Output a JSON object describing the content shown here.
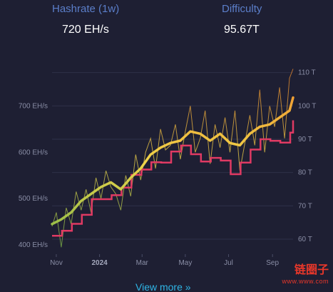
{
  "stats": {
    "hashrate_label": "Hashrate (1w)",
    "hashrate_value": "720 EH/s",
    "difficulty_label": "Difficulty",
    "difficulty_value": "95.67T"
  },
  "link": {
    "view_more": "View more »"
  },
  "watermark": {
    "text": "链圈子",
    "url": "www.www.com"
  },
  "colors": {
    "background": "#1e1f33",
    "label_blue": "#5b7ec9",
    "link_blue": "#2fb5e6",
    "difficulty_line": "#e03a63",
    "hashrate_low": "#7ab648",
    "hashrate_mid": "#f0d54a",
    "hashrate_high": "#f08a2a"
  },
  "chart_data": {
    "type": "line",
    "x_tick_labels": [
      "Nov",
      "2024",
      "Mar",
      "May",
      "Jul",
      "Sep"
    ],
    "left_axis": {
      "ticks": [
        "400 EH/s",
        "500 EH/s",
        "600 EH/s",
        "700 EH/s"
      ],
      "ylim": [
        380,
        790
      ]
    },
    "right_axis": {
      "ticks": [
        "60 T",
        "70 T",
        "80 T",
        "90 T",
        "100 T",
        "110 T"
      ],
      "ylim": [
        55.5,
        112.5
      ]
    },
    "grid": "horizontal",
    "series": [
      {
        "kind": "hashrate_daily",
        "axis": "left",
        "x": [
          "2023-10-26",
          "2023-11-01",
          "2023-11-08",
          "2023-11-15",
          "2023-11-22",
          "2023-11-29",
          "2023-12-06",
          "2023-12-13",
          "2023-12-20",
          "2023-12-27",
          "2024-01-03",
          "2024-01-10",
          "2024-01-17",
          "2024-01-24",
          "2024-01-31",
          "2024-02-07",
          "2024-02-14",
          "2024-02-21",
          "2024-02-28",
          "2024-03-06",
          "2024-03-13",
          "2024-03-20",
          "2024-03-27",
          "2024-04-03",
          "2024-04-10",
          "2024-04-17",
          "2024-04-24",
          "2024-05-01",
          "2024-05-08",
          "2024-05-15",
          "2024-05-22",
          "2024-05-29",
          "2024-06-05",
          "2024-06-12",
          "2024-06-19",
          "2024-06-26",
          "2024-07-03",
          "2024-07-10",
          "2024-07-17",
          "2024-07-24",
          "2024-07-31",
          "2024-08-07",
          "2024-08-14",
          "2024-08-21",
          "2024-08-28",
          "2024-09-04",
          "2024-09-11",
          "2024-09-18",
          "2024-09-25",
          "2024-09-30"
        ],
        "y": [
          440,
          470,
          395,
          480,
          445,
          515,
          475,
          520,
          470,
          545,
          500,
          560,
          525,
          510,
          475,
          550,
          505,
          595,
          540,
          600,
          630,
          565,
          650,
          605,
          615,
          660,
          585,
          645,
          700,
          600,
          630,
          690,
          575,
          660,
          610,
          675,
          600,
          690,
          560,
          620,
          680,
          615,
          735,
          600,
          700,
          655,
          740,
          630,
          760,
          780
        ]
      },
      {
        "kind": "hashrate_7d_avg",
        "axis": "left",
        "x": [
          "2023-10-26",
          "2023-11-08",
          "2023-11-22",
          "2023-12-06",
          "2023-12-20",
          "2024-01-03",
          "2024-01-17",
          "2024-01-31",
          "2024-02-14",
          "2024-02-28",
          "2024-03-13",
          "2024-03-27",
          "2024-04-10",
          "2024-04-24",
          "2024-05-08",
          "2024-05-22",
          "2024-06-05",
          "2024-06-19",
          "2024-07-03",
          "2024-07-17",
          "2024-07-31",
          "2024-08-14",
          "2024-08-28",
          "2024-09-11",
          "2024-09-25",
          "2024-09-30"
        ],
        "y": [
          445,
          455,
          470,
          495,
          510,
          525,
          535,
          520,
          545,
          565,
          595,
          610,
          620,
          625,
          645,
          640,
          625,
          640,
          620,
          615,
          640,
          655,
          660,
          675,
          690,
          718
        ]
      },
      {
        "kind": "difficulty",
        "axis": "right",
        "x": [
          "2023-10-26",
          "2023-11-09",
          "2023-11-23",
          "2023-12-07",
          "2023-12-21",
          "2024-01-04",
          "2024-01-18",
          "2024-02-01",
          "2024-02-15",
          "2024-02-29",
          "2024-03-14",
          "2024-03-28",
          "2024-04-11",
          "2024-04-25",
          "2024-05-09",
          "2024-05-23",
          "2024-06-06",
          "2024-06-20",
          "2024-07-04",
          "2024-07-18",
          "2024-08-01",
          "2024-08-15",
          "2024-08-29",
          "2024-09-12",
          "2024-09-26",
          "2024-09-30"
        ],
        "y": [
          61.0,
          62.5,
          64.6,
          67.3,
          72.0,
          72.0,
          73.2,
          75.5,
          79.3,
          80.9,
          83.1,
          83.0,
          86.3,
          88.1,
          85.5,
          83.3,
          84.4,
          83.6,
          79.5,
          83.0,
          86.9,
          90.0,
          89.5,
          89.0,
          92.0,
          95.67
        ]
      }
    ]
  }
}
